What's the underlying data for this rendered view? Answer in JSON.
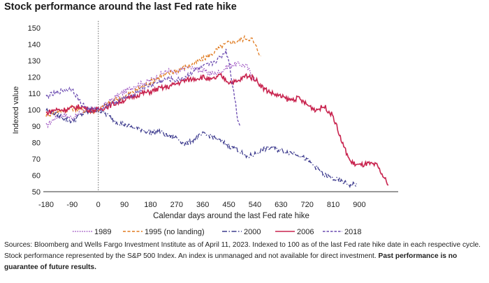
{
  "header": {
    "title": "Stock performance around the last Fed rate hike"
  },
  "footer": {
    "source_text": "Sources: Bloomberg and Wells Fargo Investment Institute as of April 11, 2023. Indexed to 100 as of the last Fed rate hike date in each respective cycle. Stock performance represented by the S&P 500 Index. An index is unmanaged and not available for direct investment. ",
    "disclaimer": "Past performance is no guarantee of future results."
  },
  "chart_data": {
    "type": "line",
    "title": "Stock performance around the last Fed rate hike",
    "xlabel": "Calendar days around the last Fed rate hike",
    "ylabel": "Indexed value",
    "xlim": [
      -180,
      1000
    ],
    "ylim": [
      50,
      150
    ],
    "x_ticks": [
      -180,
      -90,
      0,
      90,
      180,
      270,
      360,
      450,
      540,
      630,
      720,
      810,
      900
    ],
    "y_ticks": [
      50,
      60,
      70,
      80,
      90,
      100,
      110,
      120,
      130,
      140,
      150
    ],
    "grid": false,
    "vertical_reference_x": 0,
    "legend_position": "bottom",
    "series": [
      {
        "name": "1989",
        "color": "#9b4fc0",
        "dash": "1.5,1.8",
        "points": [
          [
            -180,
            90
          ],
          [
            -150,
            95
          ],
          [
            -120,
            97
          ],
          [
            -90,
            95
          ],
          [
            -60,
            98
          ],
          [
            -30,
            100
          ],
          [
            0,
            100
          ],
          [
            30,
            104
          ],
          [
            60,
            108
          ],
          [
            90,
            111
          ],
          [
            120,
            114
          ],
          [
            150,
            116
          ],
          [
            180,
            118
          ],
          [
            210,
            121
          ],
          [
            240,
            124
          ],
          [
            270,
            122
          ],
          [
            300,
            126
          ],
          [
            330,
            125
          ],
          [
            360,
            124
          ],
          [
            390,
            122
          ],
          [
            420,
            123
          ],
          [
            450,
            127
          ],
          [
            480,
            128
          ],
          [
            510,
            127
          ],
          [
            540,
            118
          ]
        ]
      },
      {
        "name": "1995 (no landing)",
        "color": "#e07a1f",
        "dash": "4,2.5",
        "points": [
          [
            -180,
            97
          ],
          [
            -150,
            98
          ],
          [
            -120,
            100
          ],
          [
            -90,
            101
          ],
          [
            -60,
            100
          ],
          [
            -30,
            99
          ],
          [
            0,
            100
          ],
          [
            30,
            103
          ],
          [
            60,
            106
          ],
          [
            90,
            108
          ],
          [
            120,
            111
          ],
          [
            150,
            114
          ],
          [
            180,
            117
          ],
          [
            210,
            120
          ],
          [
            240,
            122
          ],
          [
            270,
            124
          ],
          [
            300,
            126
          ],
          [
            330,
            128
          ],
          [
            360,
            131
          ],
          [
            390,
            134
          ],
          [
            420,
            138
          ],
          [
            450,
            141
          ],
          [
            480,
            142
          ],
          [
            510,
            144
          ],
          [
            530,
            143
          ],
          [
            545,
            138
          ],
          [
            560,
            133
          ]
        ]
      },
      {
        "name": "2000",
        "color": "#3d3b8e",
        "dash": "7,2.5,1.5,2.5",
        "points": [
          [
            -180,
            100
          ],
          [
            -150,
            98
          ],
          [
            -120,
            95
          ],
          [
            -90,
            93
          ],
          [
            -60,
            97
          ],
          [
            -30,
            99
          ],
          [
            0,
            100
          ],
          [
            30,
            97
          ],
          [
            60,
            93
          ],
          [
            90,
            91
          ],
          [
            120,
            89
          ],
          [
            150,
            88
          ],
          [
            180,
            86
          ],
          [
            210,
            87
          ],
          [
            240,
            84
          ],
          [
            270,
            83
          ],
          [
            300,
            79
          ],
          [
            330,
            82
          ],
          [
            360,
            85
          ],
          [
            390,
            84
          ],
          [
            420,
            81
          ],
          [
            450,
            78
          ],
          [
            480,
            76
          ],
          [
            510,
            71
          ],
          [
            540,
            73
          ],
          [
            570,
            76
          ],
          [
            600,
            77
          ],
          [
            630,
            75
          ],
          [
            660,
            74
          ],
          [
            690,
            73
          ],
          [
            720,
            69
          ],
          [
            750,
            65
          ],
          [
            780,
            60
          ],
          [
            810,
            58
          ],
          [
            840,
            56
          ],
          [
            870,
            54
          ],
          [
            890,
            55
          ]
        ]
      },
      {
        "name": "2006",
        "color": "#c8234e",
        "dash": "",
        "points": [
          [
            -180,
            98
          ],
          [
            -150,
            100
          ],
          [
            -120,
            100
          ],
          [
            -90,
            101
          ],
          [
            -60,
            102
          ],
          [
            -30,
            100
          ],
          [
            0,
            100
          ],
          [
            30,
            102
          ],
          [
            60,
            104
          ],
          [
            90,
            106
          ],
          [
            120,
            108
          ],
          [
            150,
            110
          ],
          [
            180,
            111
          ],
          [
            210,
            113
          ],
          [
            240,
            114
          ],
          [
            270,
            116
          ],
          [
            300,
            118
          ],
          [
            330,
            119
          ],
          [
            360,
            120
          ],
          [
            390,
            118
          ],
          [
            420,
            121
          ],
          [
            450,
            117
          ],
          [
            480,
            117
          ],
          [
            510,
            121
          ],
          [
            540,
            119
          ],
          [
            570,
            113
          ],
          [
            600,
            110
          ],
          [
            630,
            108
          ],
          [
            660,
            106
          ],
          [
            690,
            107
          ],
          [
            720,
            103
          ],
          [
            750,
            100
          ],
          [
            780,
            102
          ],
          [
            810,
            96
          ],
          [
            840,
            80
          ],
          [
            870,
            68
          ],
          [
            900,
            66
          ],
          [
            930,
            67
          ],
          [
            960,
            66
          ],
          [
            990,
            57
          ],
          [
            1000,
            54
          ]
        ]
      },
      {
        "name": "2018",
        "color": "#6a4ab0",
        "dash": "3.5,2",
        "points": [
          [
            -180,
            108
          ],
          [
            -150,
            110
          ],
          [
            -120,
            112
          ],
          [
            -90,
            113
          ],
          [
            -60,
            104
          ],
          [
            -30,
            100
          ],
          [
            0,
            100
          ],
          [
            30,
            103
          ],
          [
            60,
            105
          ],
          [
            90,
            107
          ],
          [
            120,
            109
          ],
          [
            150,
            113
          ],
          [
            180,
            115
          ],
          [
            210,
            117
          ],
          [
            240,
            119
          ],
          [
            270,
            118
          ],
          [
            300,
            120
          ],
          [
            330,
            124
          ],
          [
            360,
            126
          ],
          [
            390,
            128
          ],
          [
            420,
            132
          ],
          [
            440,
            136
          ],
          [
            450,
            130
          ],
          [
            460,
            118
          ],
          [
            470,
            108
          ],
          [
            480,
            95
          ],
          [
            490,
            90
          ]
        ]
      }
    ]
  }
}
